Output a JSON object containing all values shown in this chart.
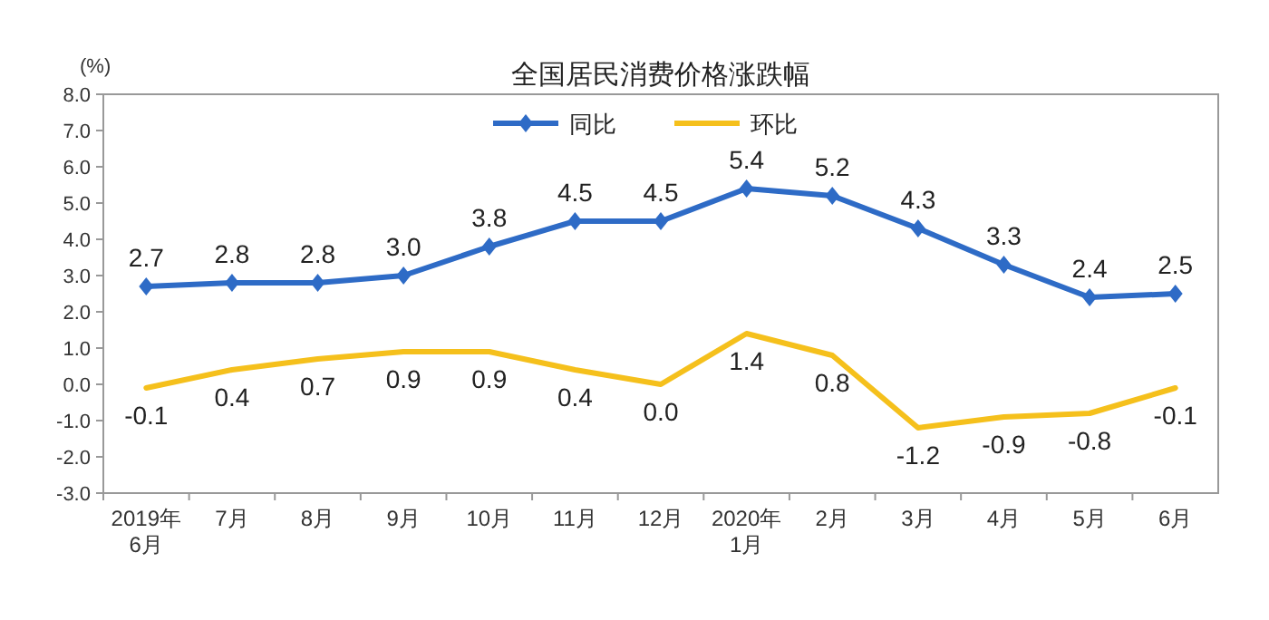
{
  "chart_data": {
    "type": "line",
    "title": "全国居民消费价格涨跌幅",
    "ylabel": "(%)",
    "categories": [
      "2019年\n6月",
      "7月",
      "8月",
      "9月",
      "10月",
      "11月",
      "12月",
      "2020年\n1月",
      "2月",
      "3月",
      "4月",
      "5月",
      "6月"
    ],
    "series": [
      {
        "name": "同比",
        "color": "#2e6bc6",
        "marker": "diamond",
        "values": [
          2.7,
          2.8,
          2.8,
          3.0,
          3.8,
          4.5,
          4.5,
          5.4,
          5.2,
          4.3,
          3.3,
          2.4,
          2.5
        ],
        "value_labels": [
          "2.7",
          "2.8",
          "2.8",
          "3.0",
          "3.8",
          "4.5",
          "4.5",
          "5.4",
          "5.2",
          "4.3",
          "3.3",
          "2.4",
          "2.5"
        ]
      },
      {
        "name": "环比",
        "color": "#f5c01c",
        "marker": "none",
        "values": [
          -0.1,
          0.4,
          0.7,
          0.9,
          0.9,
          0.4,
          0.0,
          1.4,
          0.8,
          -1.2,
          -0.9,
          -0.8,
          -0.1
        ],
        "value_labels": [
          "-0.1",
          "0.4",
          "0.7",
          "0.9",
          "0.9",
          "0.4",
          "0.0",
          "1.4",
          "0.8",
          "-1.2",
          "-0.9",
          "-0.8",
          "-0.1"
        ]
      }
    ],
    "ylim": [
      -3,
      8
    ],
    "yticks": [
      {
        "value": 8,
        "label": "8.0"
      },
      {
        "value": 7,
        "label": "7.0"
      },
      {
        "value": 6,
        "label": "6.0"
      },
      {
        "value": 5,
        "label": "5.0"
      },
      {
        "value": 4,
        "label": "4.0"
      },
      {
        "value": 3,
        "label": "3.0"
      },
      {
        "value": 2,
        "label": "2.0"
      },
      {
        "value": 1,
        "label": "1.0"
      },
      {
        "value": 0,
        "label": "0.0"
      },
      {
        "value": -1,
        "label": "-1.0"
      },
      {
        "value": -2,
        "label": "-2.0"
      },
      {
        "value": -3,
        "label": "-3.0"
      }
    ],
    "legend": "top",
    "grid": false,
    "line_style": "solid"
  }
}
